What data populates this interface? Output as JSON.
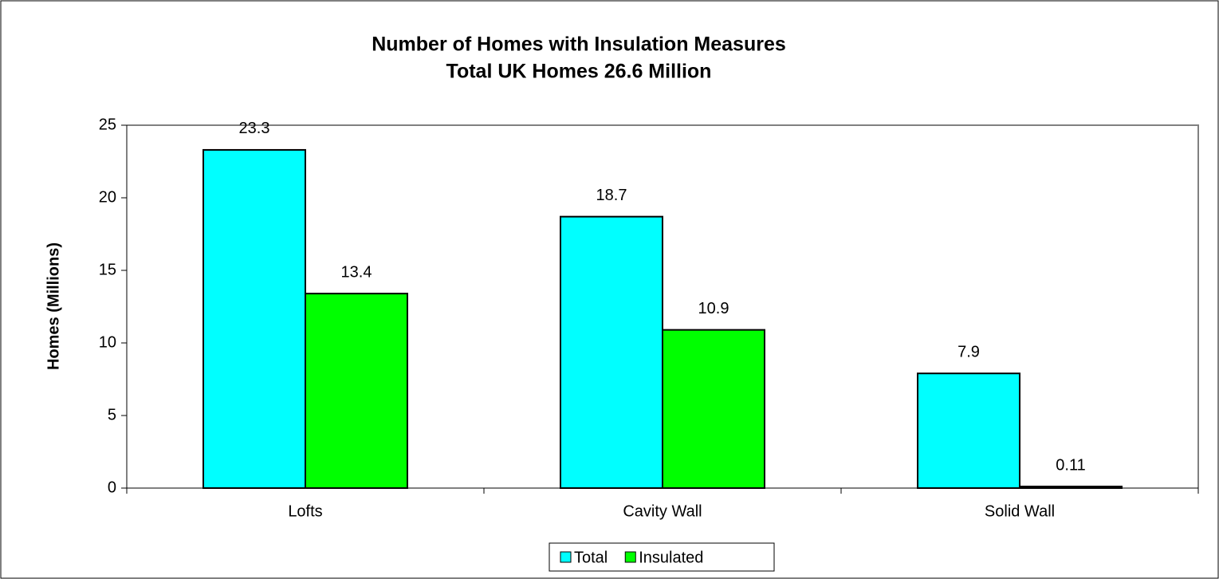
{
  "chart_data": {
    "type": "bar",
    "title": "Number of Homes with Insulation Measures",
    "subtitle": "Total UK Homes 26.6 Million",
    "y_label": "Homes (Millions)",
    "categories": [
      "Lofts",
      "Cavity Wall",
      "Solid Wall"
    ],
    "series": [
      {
        "name": "Total",
        "color": "#00ffff",
        "values": [
          23.3,
          18.7,
          7.9
        ]
      },
      {
        "name": "Insulated",
        "color": "#00ff00",
        "values": [
          13.4,
          10.9,
          0.11
        ]
      }
    ],
    "ylim": [
      0,
      25
    ],
    "yticks": [
      0,
      5,
      10,
      15,
      20,
      25
    ],
    "legend": "bottom",
    "grid": false
  }
}
